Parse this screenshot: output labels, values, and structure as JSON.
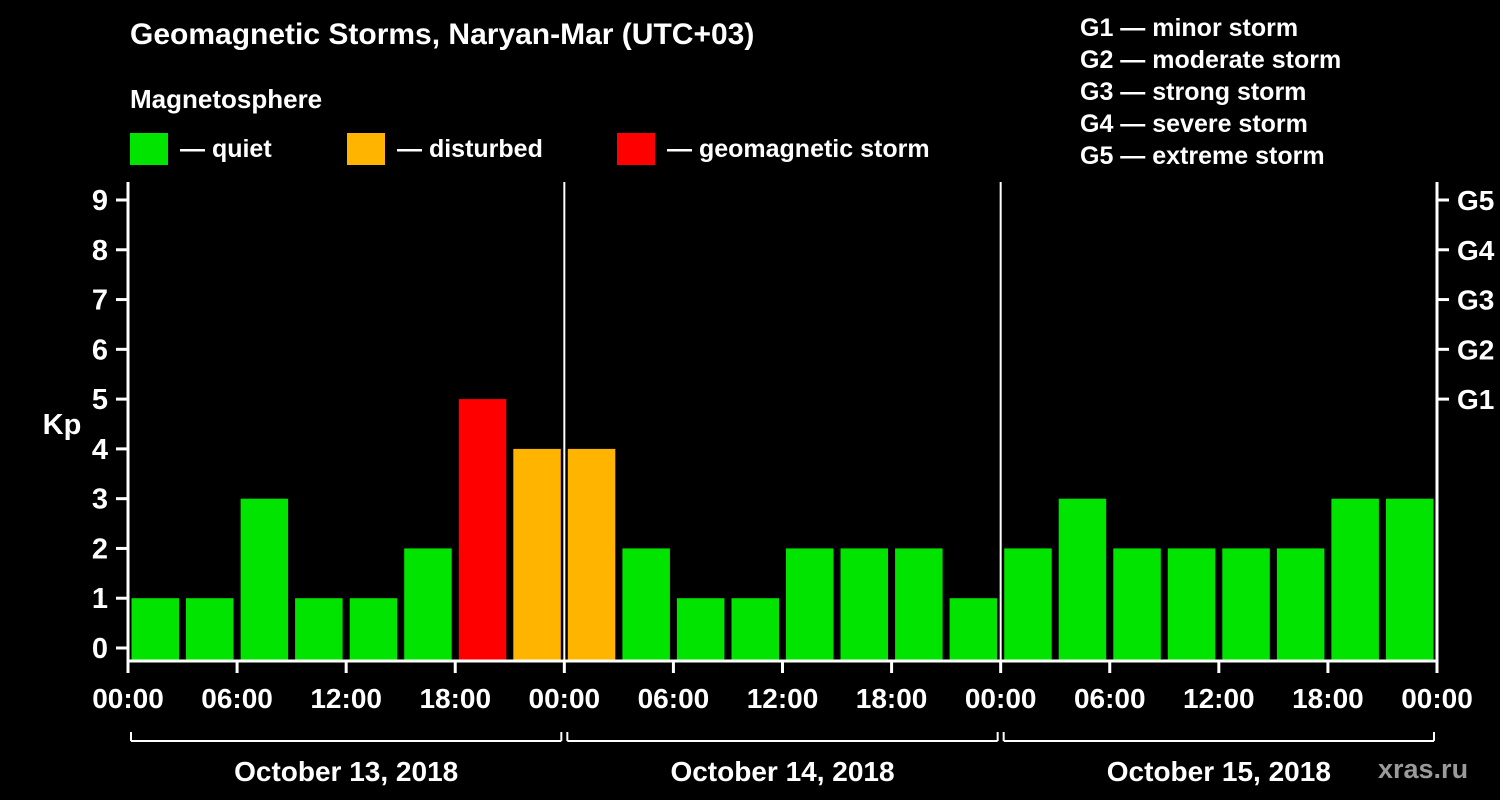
{
  "header": {
    "title": "Geomagnetic Storms, Naryan-Mar (UTC+03)",
    "subtitle": "Magnetosphere"
  },
  "legend": {
    "items": [
      {
        "key": "quiet",
        "label": "— quiet",
        "color": "#00e400"
      },
      {
        "key": "disturbed",
        "label": "— disturbed",
        "color": "#ffb400"
      },
      {
        "key": "storm",
        "label": "— geomagnetic storm",
        "color": "#ff0000"
      }
    ]
  },
  "storm_scale": {
    "lines": [
      "G1 — minor storm",
      "G2 — moderate storm",
      "G3 — strong storm",
      "G4 — severe storm",
      "G5 — extreme storm"
    ]
  },
  "watermark": "xras.ru",
  "chart_data": {
    "type": "bar",
    "title": "Geomagnetic Storms, Naryan-Mar (UTC+03)",
    "ylabel": "Kp",
    "ylim": [
      0,
      9
    ],
    "yticks": [
      0,
      1,
      2,
      3,
      4,
      5,
      6,
      7,
      8,
      9
    ],
    "right_axis": [
      {
        "value": 5,
        "label": "G1"
      },
      {
        "value": 6,
        "label": "G2"
      },
      {
        "value": 7,
        "label": "G3"
      },
      {
        "value": 8,
        "label": "G4"
      },
      {
        "value": 9,
        "label": "G5"
      }
    ],
    "x_tick_labels": [
      "00:00",
      "06:00",
      "12:00",
      "18:00",
      "00:00",
      "06:00",
      "12:00",
      "18:00",
      "00:00",
      "06:00",
      "12:00",
      "18:00",
      "00:00"
    ],
    "bar_interval_hours": 3,
    "days": [
      {
        "date": "October 13, 2018",
        "values": [
          1,
          1,
          3,
          1,
          1,
          2,
          5,
          4
        ]
      },
      {
        "date": "October 14, 2018",
        "values": [
          4,
          2,
          1,
          1,
          2,
          2,
          2,
          1
        ]
      },
      {
        "date": "October 15, 2018",
        "values": [
          2,
          3,
          2,
          2,
          2,
          2,
          3,
          3
        ]
      }
    ],
    "color_rules": {
      "quiet_max": 3,
      "disturbed_max": 4,
      "storm_min": 5
    },
    "colors": {
      "quiet": "#00e400",
      "disturbed": "#ffb400",
      "storm": "#ff0000",
      "axis": "#ffffff",
      "background": "#000000"
    },
    "legend_position": "top",
    "grid": false
  }
}
